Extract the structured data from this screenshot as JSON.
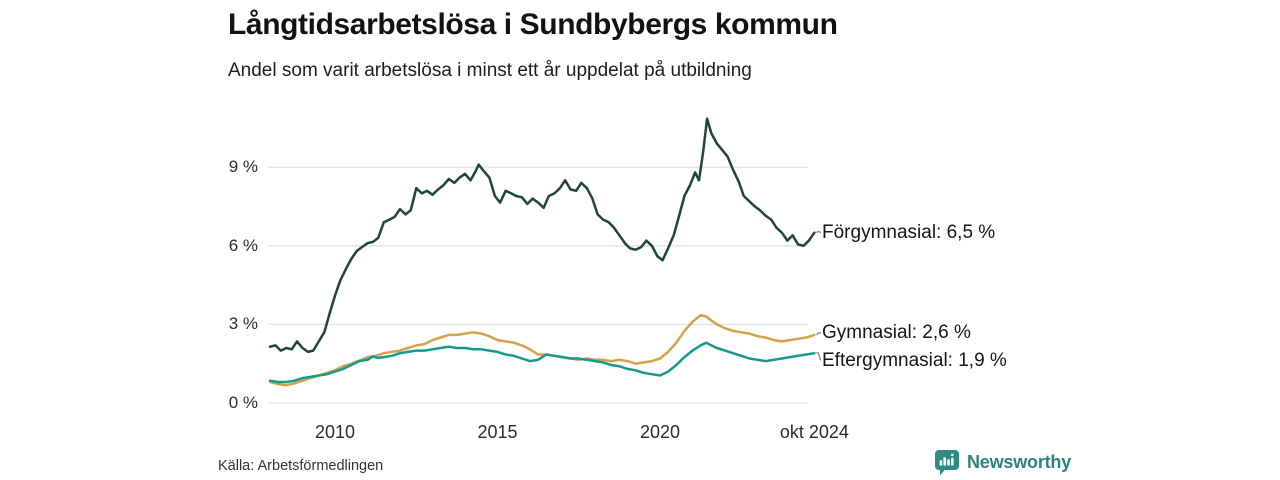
{
  "chart_data": {
    "type": "line",
    "title": "Långtidsarbetslösa i Sundbybergs kommun",
    "subtitle": "Andel som varit arbetslösa i minst ett år uppdelat på utbildning",
    "source": "Källa: Arbetsförmedlingen",
    "x_unit": "year (monthly data, Jan 2008 – Oct 2024)",
    "xlim": [
      2008.0,
      2024.79
    ],
    "ylim": [
      0,
      11
    ],
    "grid": "horizontal-only",
    "legend_position": "labels-at-line-ends-right",
    "y_ticks": [
      {
        "label": "9 %",
        "value": 9
      },
      {
        "label": "6 %",
        "value": 6
      },
      {
        "label": "3 %",
        "value": 3
      },
      {
        "label": "0 %",
        "value": 0
      }
    ],
    "x_ticks": [
      {
        "label": "2010",
        "value": 2010
      },
      {
        "label": "2015",
        "value": 2015
      },
      {
        "label": "2020",
        "value": 2020
      },
      {
        "label": "okt 2024",
        "value": 2024.75
      }
    ],
    "series": [
      {
        "name": "Förgymnasial",
        "label": "Förgymnasial: 6,5 %",
        "last_value_text": "6,5 %",
        "color": "#20453a",
        "points": [
          [
            2008.0,
            2.15
          ],
          [
            2008.17,
            2.2
          ],
          [
            2008.33,
            2.0
          ],
          [
            2008.5,
            2.1
          ],
          [
            2008.67,
            2.05
          ],
          [
            2008.83,
            2.35
          ],
          [
            2009.0,
            2.1
          ],
          [
            2009.17,
            1.95
          ],
          [
            2009.33,
            2.0
          ],
          [
            2009.5,
            2.35
          ],
          [
            2009.67,
            2.7
          ],
          [
            2009.83,
            3.4
          ],
          [
            2010.0,
            4.1
          ],
          [
            2010.17,
            4.7
          ],
          [
            2010.33,
            5.1
          ],
          [
            2010.5,
            5.5
          ],
          [
            2010.67,
            5.8
          ],
          [
            2010.83,
            5.95
          ],
          [
            2011.0,
            6.1
          ],
          [
            2011.17,
            6.15
          ],
          [
            2011.33,
            6.3
          ],
          [
            2011.5,
            6.9
          ],
          [
            2011.67,
            7.0
          ],
          [
            2011.83,
            7.1
          ],
          [
            2012.0,
            7.4
          ],
          [
            2012.17,
            7.2
          ],
          [
            2012.33,
            7.35
          ],
          [
            2012.5,
            8.2
          ],
          [
            2012.67,
            8.0
          ],
          [
            2012.83,
            8.1
          ],
          [
            2013.0,
            7.95
          ],
          [
            2013.17,
            8.15
          ],
          [
            2013.33,
            8.3
          ],
          [
            2013.5,
            8.55
          ],
          [
            2013.67,
            8.4
          ],
          [
            2013.83,
            8.6
          ],
          [
            2014.0,
            8.75
          ],
          [
            2014.17,
            8.5
          ],
          [
            2014.33,
            8.85
          ],
          [
            2014.42,
            9.1
          ],
          [
            2014.58,
            8.85
          ],
          [
            2014.75,
            8.6
          ],
          [
            2014.92,
            7.9
          ],
          [
            2015.08,
            7.65
          ],
          [
            2015.25,
            8.1
          ],
          [
            2015.42,
            8.0
          ],
          [
            2015.58,
            7.9
          ],
          [
            2015.75,
            7.85
          ],
          [
            2015.92,
            7.6
          ],
          [
            2016.08,
            7.8
          ],
          [
            2016.25,
            7.65
          ],
          [
            2016.42,
            7.45
          ],
          [
            2016.58,
            7.9
          ],
          [
            2016.75,
            8.0
          ],
          [
            2016.92,
            8.2
          ],
          [
            2017.08,
            8.5
          ],
          [
            2017.25,
            8.15
          ],
          [
            2017.42,
            8.1
          ],
          [
            2017.58,
            8.4
          ],
          [
            2017.75,
            8.2
          ],
          [
            2017.92,
            7.8
          ],
          [
            2018.08,
            7.2
          ],
          [
            2018.25,
            7.0
          ],
          [
            2018.42,
            6.9
          ],
          [
            2018.58,
            6.7
          ],
          [
            2018.75,
            6.4
          ],
          [
            2018.92,
            6.1
          ],
          [
            2019.08,
            5.9
          ],
          [
            2019.25,
            5.85
          ],
          [
            2019.42,
            5.95
          ],
          [
            2019.58,
            6.2
          ],
          [
            2019.75,
            6.0
          ],
          [
            2019.92,
            5.6
          ],
          [
            2020.08,
            5.45
          ],
          [
            2020.25,
            5.9
          ],
          [
            2020.42,
            6.4
          ],
          [
            2020.58,
            7.1
          ],
          [
            2020.75,
            7.9
          ],
          [
            2020.92,
            8.3
          ],
          [
            2021.08,
            8.8
          ],
          [
            2021.2,
            8.5
          ],
          [
            2021.33,
            9.6
          ],
          [
            2021.45,
            10.85
          ],
          [
            2021.58,
            10.3
          ],
          [
            2021.75,
            9.9
          ],
          [
            2021.92,
            9.65
          ],
          [
            2022.08,
            9.4
          ],
          [
            2022.25,
            8.9
          ],
          [
            2022.42,
            8.45
          ],
          [
            2022.58,
            7.9
          ],
          [
            2022.75,
            7.7
          ],
          [
            2022.92,
            7.5
          ],
          [
            2023.08,
            7.35
          ],
          [
            2023.25,
            7.15
          ],
          [
            2023.42,
            7.0
          ],
          [
            2023.58,
            6.7
          ],
          [
            2023.75,
            6.5
          ],
          [
            2023.92,
            6.2
          ],
          [
            2024.08,
            6.4
          ],
          [
            2024.25,
            6.05
          ],
          [
            2024.42,
            6.0
          ],
          [
            2024.58,
            6.2
          ],
          [
            2024.75,
            6.5
          ]
        ]
      },
      {
        "name": "Gymnasial",
        "label": "Gymnasial: 2,6 %",
        "last_value_text": "2,6 %",
        "color": "#d4a24a",
        "points": [
          [
            2008.0,
            0.8
          ],
          [
            2008.25,
            0.72
          ],
          [
            2008.5,
            0.68
          ],
          [
            2008.75,
            0.75
          ],
          [
            2009.0,
            0.85
          ],
          [
            2009.25,
            0.95
          ],
          [
            2009.5,
            1.05
          ],
          [
            2009.75,
            1.15
          ],
          [
            2010.0,
            1.25
          ],
          [
            2010.25,
            1.4
          ],
          [
            2010.5,
            1.5
          ],
          [
            2010.75,
            1.62
          ],
          [
            2011.0,
            1.75
          ],
          [
            2011.25,
            1.8
          ],
          [
            2011.5,
            1.9
          ],
          [
            2011.75,
            1.95
          ],
          [
            2012.0,
            2.0
          ],
          [
            2012.25,
            2.1
          ],
          [
            2012.5,
            2.2
          ],
          [
            2012.75,
            2.25
          ],
          [
            2013.0,
            2.4
          ],
          [
            2013.25,
            2.5
          ],
          [
            2013.5,
            2.6
          ],
          [
            2013.75,
            2.6
          ],
          [
            2014.0,
            2.65
          ],
          [
            2014.25,
            2.7
          ],
          [
            2014.5,
            2.65
          ],
          [
            2014.75,
            2.55
          ],
          [
            2015.0,
            2.4
          ],
          [
            2015.25,
            2.35
          ],
          [
            2015.5,
            2.3
          ],
          [
            2015.75,
            2.2
          ],
          [
            2016.0,
            2.05
          ],
          [
            2016.25,
            1.85
          ],
          [
            2016.5,
            1.85
          ],
          [
            2016.75,
            1.8
          ],
          [
            2017.0,
            1.75
          ],
          [
            2017.25,
            1.7
          ],
          [
            2017.5,
            1.65
          ],
          [
            2017.75,
            1.7
          ],
          [
            2018.0,
            1.65
          ],
          [
            2018.25,
            1.65
          ],
          [
            2018.5,
            1.6
          ],
          [
            2018.75,
            1.65
          ],
          [
            2019.0,
            1.6
          ],
          [
            2019.25,
            1.5
          ],
          [
            2019.5,
            1.55
          ],
          [
            2019.75,
            1.6
          ],
          [
            2020.0,
            1.7
          ],
          [
            2020.25,
            1.95
          ],
          [
            2020.5,
            2.3
          ],
          [
            2020.75,
            2.75
          ],
          [
            2021.0,
            3.1
          ],
          [
            2021.25,
            3.35
          ],
          [
            2021.42,
            3.3
          ],
          [
            2021.58,
            3.15
          ],
          [
            2021.75,
            3.0
          ],
          [
            2022.0,
            2.85
          ],
          [
            2022.25,
            2.75
          ],
          [
            2022.5,
            2.7
          ],
          [
            2022.75,
            2.65
          ],
          [
            2023.0,
            2.55
          ],
          [
            2023.25,
            2.5
          ],
          [
            2023.5,
            2.4
          ],
          [
            2023.75,
            2.35
          ],
          [
            2024.0,
            2.4
          ],
          [
            2024.25,
            2.45
          ],
          [
            2024.5,
            2.5
          ],
          [
            2024.75,
            2.6
          ]
        ]
      },
      {
        "name": "Eftergymnasial",
        "label": "Eftergymnasial: 1,9 %",
        "last_value_text": "1,9 %",
        "color": "#14998a",
        "points": [
          [
            2008.0,
            0.85
          ],
          [
            2008.25,
            0.8
          ],
          [
            2008.5,
            0.8
          ],
          [
            2008.75,
            0.85
          ],
          [
            2009.0,
            0.95
          ],
          [
            2009.25,
            1.0
          ],
          [
            2009.5,
            1.05
          ],
          [
            2009.75,
            1.1
          ],
          [
            2010.0,
            1.2
          ],
          [
            2010.25,
            1.3
          ],
          [
            2010.5,
            1.45
          ],
          [
            2010.75,
            1.6
          ],
          [
            2011.0,
            1.65
          ],
          [
            2011.17,
            1.78
          ],
          [
            2011.33,
            1.72
          ],
          [
            2011.5,
            1.75
          ],
          [
            2011.75,
            1.8
          ],
          [
            2012.0,
            1.9
          ],
          [
            2012.25,
            1.95
          ],
          [
            2012.5,
            2.0
          ],
          [
            2012.75,
            2.0
          ],
          [
            2013.0,
            2.05
          ],
          [
            2013.25,
            2.1
          ],
          [
            2013.5,
            2.15
          ],
          [
            2013.75,
            2.1
          ],
          [
            2014.0,
            2.1
          ],
          [
            2014.25,
            2.05
          ],
          [
            2014.5,
            2.05
          ],
          [
            2014.75,
            2.0
          ],
          [
            2015.0,
            1.95
          ],
          [
            2015.25,
            1.85
          ],
          [
            2015.5,
            1.8
          ],
          [
            2015.75,
            1.7
          ],
          [
            2016.0,
            1.6
          ],
          [
            2016.25,
            1.65
          ],
          [
            2016.5,
            1.85
          ],
          [
            2016.75,
            1.8
          ],
          [
            2017.0,
            1.75
          ],
          [
            2017.25,
            1.7
          ],
          [
            2017.5,
            1.7
          ],
          [
            2017.75,
            1.65
          ],
          [
            2018.0,
            1.6
          ],
          [
            2018.25,
            1.55
          ],
          [
            2018.5,
            1.45
          ],
          [
            2018.75,
            1.4
          ],
          [
            2019.0,
            1.3
          ],
          [
            2019.25,
            1.25
          ],
          [
            2019.5,
            1.15
          ],
          [
            2019.75,
            1.1
          ],
          [
            2020.0,
            1.05
          ],
          [
            2020.25,
            1.2
          ],
          [
            2020.5,
            1.45
          ],
          [
            2020.75,
            1.75
          ],
          [
            2021.0,
            2.0
          ],
          [
            2021.25,
            2.2
          ],
          [
            2021.42,
            2.3
          ],
          [
            2021.58,
            2.2
          ],
          [
            2021.75,
            2.1
          ],
          [
            2022.0,
            2.0
          ],
          [
            2022.25,
            1.9
          ],
          [
            2022.5,
            1.8
          ],
          [
            2022.75,
            1.7
          ],
          [
            2023.0,
            1.65
          ],
          [
            2023.25,
            1.6
          ],
          [
            2023.5,
            1.65
          ],
          [
            2023.75,
            1.7
          ],
          [
            2024.0,
            1.75
          ],
          [
            2024.25,
            1.8
          ],
          [
            2024.5,
            1.85
          ],
          [
            2024.75,
            1.9
          ]
        ]
      }
    ],
    "colors": {
      "gridline": "#e3e3e3",
      "leader_line": "#8a8a8a",
      "text_primary": "#121212",
      "tick_text": "#2b2b2b"
    }
  },
  "branding": {
    "logo_text": "Newsworthy",
    "logo_color": "#2b837c",
    "icon": "newsworthy-chart-bubble-icon"
  }
}
